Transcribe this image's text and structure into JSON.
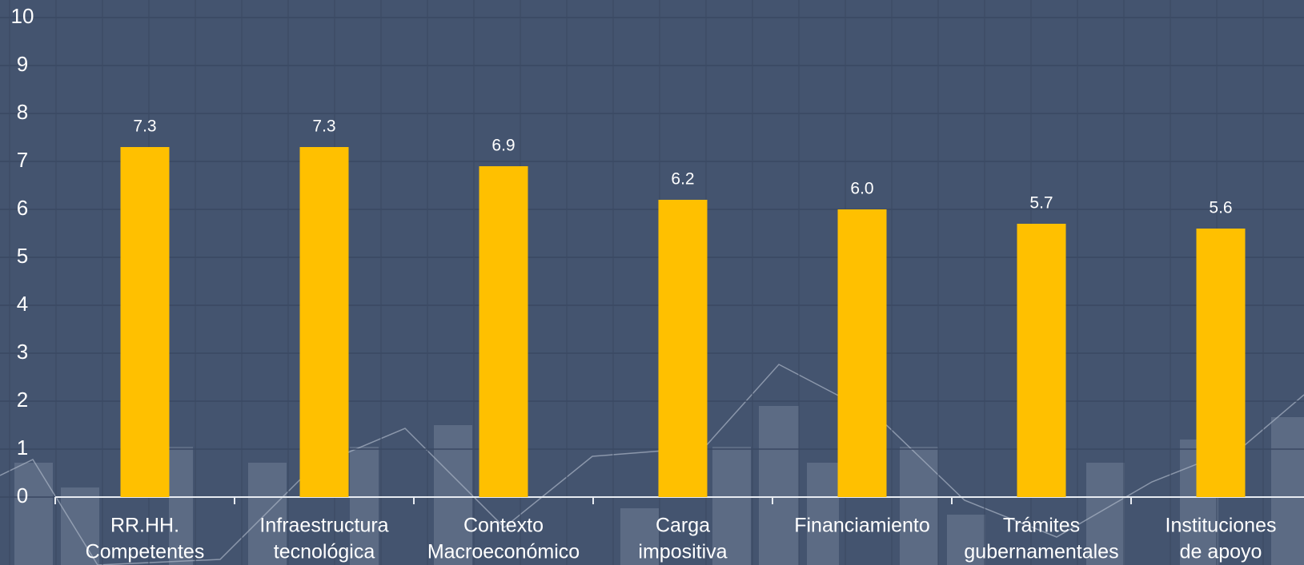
{
  "chart_data": {
    "type": "bar",
    "categories": [
      [
        "RR.HH.",
        "Competentes"
      ],
      [
        "Infraestructura",
        "tecnológica"
      ],
      [
        "Contexto",
        "Macroeconómico"
      ],
      [
        "Carga",
        "impositiva"
      ],
      [
        "Financiamiento"
      ],
      [
        "Trámites",
        "gubernamentales"
      ],
      [
        "Instituciones",
        "de apoyo"
      ]
    ],
    "values": [
      7.3,
      7.3,
      6.9,
      6.2,
      6.0,
      5.7,
      5.6
    ],
    "value_labels": [
      "7.3",
      "7.3",
      "6.9",
      "6.2",
      "6.0",
      "5.7",
      "5.6"
    ],
    "color": "#ffc000",
    "ylim": [
      0,
      10
    ],
    "yticks": [
      0,
      1,
      2,
      3,
      4,
      5,
      6,
      7,
      8,
      9,
      10
    ],
    "grid": true
  }
}
